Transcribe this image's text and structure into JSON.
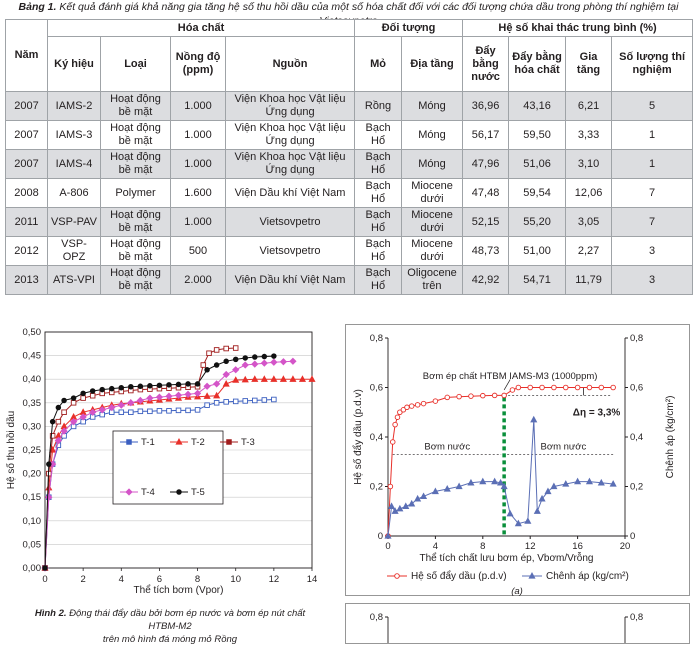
{
  "table": {
    "caption_bold": "Bảng 1.",
    "caption_text": " Kết quả đánh giá khả năng gia tăng hệ số thu hồi dầu của một số hóa chất đối với các đối tượng chứa dầu trong phòng thí nghiệm tại Vietsovpetro",
    "group_headers": {
      "year": "Năm",
      "chem": "Hóa chất",
      "target": "Đối tượng",
      "coef": "Hệ số khai thác trung bình (%)"
    },
    "sub_headers": {
      "symbol": "Ký hiệu",
      "type": "Loại",
      "conc": "Nồng độ (ppm)",
      "source": "Nguồn",
      "field": "Mỏ",
      "strata": "Địa tầng",
      "water": "Đẩy bằng nước",
      "chemflood": "Đẩy bằng hóa chất",
      "increase": "Gia tăng",
      "count": "Số lượng thí nghiệm"
    },
    "rows": [
      {
        "year": "2007",
        "symbol": "IAMS-2",
        "type": "Hoạt động bề mặt",
        "conc": "1.000",
        "source": "Viện Khoa học Vật liệu Ứng dụng",
        "field": "Rồng",
        "strata": "Móng",
        "water": "36,96",
        "chemflood": "43,16",
        "increase": "6,21",
        "count": "5"
      },
      {
        "year": "2007",
        "symbol": "IAMS-3",
        "type": "Hoạt động bề mặt",
        "conc": "1.000",
        "source": "Viện Khoa học Vật liệu Ứng dụng",
        "field": "Bạch Hổ",
        "strata": "Móng",
        "water": "56,17",
        "chemflood": "59,50",
        "increase": "3,33",
        "count": "1"
      },
      {
        "year": "2007",
        "symbol": "IAMS-4",
        "type": "Hoạt động bề mặt",
        "conc": "1.000",
        "source": "Viện Khoa học Vật liệu Ứng dụng",
        "field": "Bạch Hổ",
        "strata": "Móng",
        "water": "47,96",
        "chemflood": "51,06",
        "increase": "3,10",
        "count": "1"
      },
      {
        "year": "2008",
        "symbol": "A-806",
        "type": "Polymer",
        "conc": "1.600",
        "source": "Viện Dầu khí Việt Nam",
        "field": "Bạch Hổ",
        "strata": "Miocene dưới",
        "water": "47,48",
        "chemflood": "59,54",
        "increase": "12,06",
        "count": "7"
      },
      {
        "year": "2011",
        "symbol": "VSP-PAV",
        "type": "Hoạt động bề mặt",
        "conc": "1.000",
        "source": "Vietsovpetro",
        "field": "Bạch Hổ",
        "strata": "Miocene dưới",
        "water": "52,15",
        "chemflood": "55,20",
        "increase": "3,05",
        "count": "7"
      },
      {
        "year": "2012",
        "symbol": "VSP-OPZ",
        "type": "Hoạt động bề mặt",
        "conc": "500",
        "source": "Vietsovpetro",
        "field": "Bạch Hổ",
        "strata": "Miocene dưới",
        "water": "48,73",
        "chemflood": "51,00",
        "increase": "2,27",
        "count": "3"
      },
      {
        "year": "2013",
        "symbol": "ATS-VPI",
        "type": "Hoạt động bề mặt",
        "conc": "2.000",
        "source": "Viện Dầu khí Việt Nam",
        "field": "Bạch Hổ",
        "strata": "Oligocene trên",
        "water": "42,92",
        "chemflood": "54,71",
        "increase": "11,79",
        "count": "3"
      }
    ]
  },
  "figure2": {
    "caption_bold": "Hình 2.",
    "caption_line1": " Động thái đẩy dầu bởi bơm ép nước và bơm ép nút chất HTBM-M2",
    "caption_line2": "trên mô hình đá móng mỏ Rồng"
  },
  "chart_data": [
    {
      "type": "line",
      "title": "",
      "xlabel": "Thể tích bơm (Vpor)",
      "ylabel": "Hệ số thu hồi dầu",
      "xlim": [
        0,
        14
      ],
      "ylim": [
        0,
        0.5
      ],
      "x_ticks": [
        "0",
        "2",
        "4",
        "6",
        "8",
        "10",
        "12",
        "14"
      ],
      "y_ticks": [
        "0,00",
        "0,05",
        "0,10",
        "0,15",
        "0,20",
        "0,25",
        "0,30",
        "0,35",
        "0,40",
        "0,45",
        "0,50"
      ],
      "legend_position": "center-right",
      "colors": {
        "T-1": "#3b5fc0",
        "T-2": "#e8302a",
        "T-3": "#a01d1d",
        "T-4": "#d455c8",
        "T-5": "#111111"
      },
      "series": [
        {
          "name": "T-1",
          "marker": "square",
          "x": [
            0,
            0.2,
            0.4,
            0.7,
            1,
            1.5,
            2,
            2.5,
            3,
            3.5,
            4,
            4.5,
            5,
            5.5,
            6,
            6.5,
            7,
            7.5,
            8,
            8.5,
            9,
            9.5,
            10,
            10.5,
            11,
            11.5,
            12
          ],
          "y": [
            0,
            0.15,
            0.22,
            0.26,
            0.28,
            0.3,
            0.31,
            0.32,
            0.325,
            0.33,
            0.33,
            0.33,
            0.332,
            0.332,
            0.333,
            0.333,
            0.334,
            0.334,
            0.335,
            0.345,
            0.35,
            0.352,
            0.353,
            0.354,
            0.355,
            0.356,
            0.357
          ]
        },
        {
          "name": "T-2",
          "marker": "triangle",
          "x": [
            0,
            0.2,
            0.4,
            0.7,
            1,
            1.5,
            2,
            2.5,
            3,
            3.5,
            4,
            4.5,
            5,
            5.5,
            6,
            6.5,
            7,
            7.5,
            8,
            8.5,
            9,
            9.5,
            10,
            10.5,
            11,
            11.5,
            12,
            12.5,
            13,
            13.5,
            14
          ],
          "y": [
            0,
            0.17,
            0.25,
            0.28,
            0.3,
            0.32,
            0.33,
            0.335,
            0.34,
            0.345,
            0.348,
            0.35,
            0.352,
            0.354,
            0.356,
            0.358,
            0.36,
            0.362,
            0.363,
            0.364,
            0.365,
            0.39,
            0.398,
            0.399,
            0.4,
            0.4,
            0.4,
            0.4,
            0.4,
            0.4,
            0.4
          ]
        },
        {
          "name": "T-3",
          "marker": "square",
          "x": [
            0,
            0.2,
            0.4,
            0.7,
            1,
            1.5,
            2,
            2.5,
            3,
            3.5,
            4,
            4.5,
            5,
            5.5,
            6,
            6.5,
            7,
            7.5,
            8,
            8.3,
            8.6,
            9,
            9.5,
            10
          ],
          "y": [
            0,
            0.2,
            0.28,
            0.31,
            0.33,
            0.35,
            0.36,
            0.365,
            0.37,
            0.372,
            0.374,
            0.376,
            0.378,
            0.379,
            0.38,
            0.381,
            0.382,
            0.383,
            0.384,
            0.43,
            0.455,
            0.462,
            0.465,
            0.466
          ]
        },
        {
          "name": "T-4",
          "marker": "diamond",
          "x": [
            0,
            0.2,
            0.4,
            0.7,
            1,
            1.5,
            2,
            2.5,
            3,
            3.5,
            4,
            4.5,
            5,
            5.5,
            6,
            6.5,
            7,
            7.5,
            8,
            8.5,
            9,
            9.5,
            10,
            10.5,
            11,
            11.5,
            12,
            12.5,
            13
          ],
          "y": [
            0,
            0.15,
            0.22,
            0.27,
            0.29,
            0.31,
            0.32,
            0.33,
            0.335,
            0.34,
            0.345,
            0.35,
            0.355,
            0.36,
            0.362,
            0.364,
            0.366,
            0.368,
            0.37,
            0.385,
            0.39,
            0.41,
            0.42,
            0.43,
            0.432,
            0.434,
            0.436,
            0.437,
            0.438
          ]
        },
        {
          "name": "T-5",
          "marker": "circle",
          "x": [
            0,
            0.2,
            0.4,
            0.7,
            1,
            1.5,
            2,
            2.5,
            3,
            3.5,
            4,
            4.5,
            5,
            5.5,
            6,
            6.5,
            7,
            7.5,
            8,
            8.5,
            9,
            9.5,
            10,
            10.5,
            11,
            11.5,
            12
          ],
          "y": [
            0,
            0.22,
            0.31,
            0.34,
            0.355,
            0.36,
            0.37,
            0.375,
            0.378,
            0.38,
            0.382,
            0.384,
            0.385,
            0.386,
            0.387,
            0.388,
            0.389,
            0.39,
            0.39,
            0.42,
            0.43,
            0.438,
            0.442,
            0.445,
            0.447,
            0.448,
            0.449
          ]
        }
      ]
    },
    {
      "type": "line",
      "title": "",
      "subtitle": "(a)",
      "xlabel": "Thể tích chất lưu bơm ép, Vbơm/Vrỗng",
      "ylabel": "Hệ số đẩy dầu (p.d.v)",
      "y2label": "Chênh áp (kg/cm²)",
      "xlim": [
        0,
        20
      ],
      "ylim": [
        0,
        0.8
      ],
      "y2lim": [
        0,
        0.8
      ],
      "x_ticks": [
        "0",
        "4",
        "8",
        "12",
        "16",
        "20"
      ],
      "y_ticks": [
        "0",
        "0,2",
        "0,4",
        "0,6",
        "0,8"
      ],
      "y2_ticks": [
        "0",
        "0,2",
        "0,4",
        "0,6",
        "0,8"
      ],
      "legend_position": "bottom",
      "annotations": {
        "injection": "Bơm ép chất HTBM IAMS-M3 (1000ppm)",
        "delta": "Δη = 3,3%",
        "water_left": "Bơm nước",
        "water_right": "Bơm nước",
        "injection_x": 9.8
      },
      "colors": {
        "oil": "#e8302a",
        "pressure": "#5b6fb5",
        "marker_line": "#0a8f3b"
      },
      "series": [
        {
          "name": "Hệ số đẩy dầu (p.d.v)",
          "marker": "circle",
          "axis": "left",
          "x": [
            0,
            0.2,
            0.4,
            0.6,
            0.8,
            1,
            1.3,
            1.6,
            2,
            2.5,
            3,
            4,
            5,
            6,
            7,
            8,
            9,
            9.8,
            10.5,
            11,
            12,
            13,
            14,
            15,
            16,
            17,
            18,
            19
          ],
          "y": [
            0,
            0.2,
            0.38,
            0.45,
            0.48,
            0.5,
            0.51,
            0.52,
            0.525,
            0.53,
            0.535,
            0.545,
            0.56,
            0.563,
            0.565,
            0.567,
            0.568,
            0.568,
            0.59,
            0.6,
            0.6,
            0.6,
            0.6,
            0.6,
            0.6,
            0.6,
            0.6,
            0.6
          ]
        },
        {
          "name": "Chênh áp (kg/cm²)",
          "marker": "triangle",
          "axis": "right",
          "x": [
            0,
            0.3,
            0.6,
            1,
            1.5,
            2,
            2.5,
            3,
            4,
            5,
            6,
            7,
            8,
            9,
            9.5,
            9.8,
            10.3,
            11,
            11.8,
            12.3,
            12.6,
            13,
            13.5,
            14,
            15,
            16,
            17,
            18,
            19
          ],
          "y": [
            0,
            0.12,
            0.1,
            0.11,
            0.12,
            0.13,
            0.15,
            0.16,
            0.18,
            0.19,
            0.2,
            0.215,
            0.22,
            0.22,
            0.215,
            0.2,
            0.09,
            0.05,
            0.06,
            0.47,
            0.1,
            0.15,
            0.18,
            0.2,
            0.21,
            0.22,
            0.22,
            0.215,
            0.21
          ]
        }
      ]
    },
    {
      "type": "line",
      "y_ticks": [
        "0,8"
      ],
      "y2_ticks": [
        "0,8"
      ]
    }
  ]
}
